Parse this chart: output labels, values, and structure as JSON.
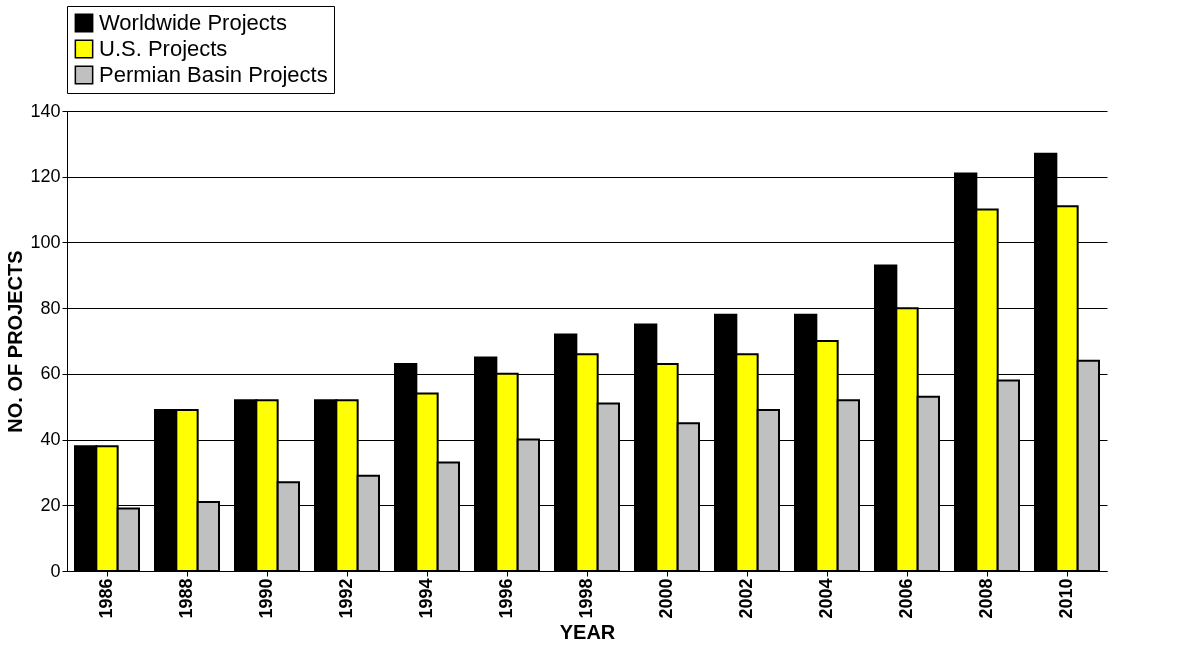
{
  "chart_data": {
    "type": "bar",
    "xlabel": "YEAR",
    "ylabel": "NO. OF PROJECTS",
    "categories": [
      "1986",
      "1988",
      "1990",
      "1992",
      "1994",
      "1996",
      "1998",
      "2000",
      "2002",
      "2004",
      "2006",
      "2008",
      "2010"
    ],
    "series": [
      {
        "name": "Worldwide Projects",
        "color": "#000000",
        "values": [
          38,
          49,
          52,
          52,
          63,
          65,
          72,
          75,
          78,
          78,
          93,
          121,
          127
        ]
      },
      {
        "name": "U.S. Projects",
        "color": "#ffff00",
        "values": [
          38,
          49,
          52,
          52,
          54,
          60,
          66,
          63,
          66,
          70,
          80,
          110,
          111
        ]
      },
      {
        "name": "Permian Basin Projects",
        "color": "#c0c0c0",
        "values": [
          19,
          21,
          27,
          29,
          33,
          40,
          51,
          45,
          49,
          52,
          53,
          58,
          64
        ]
      }
    ],
    "ylim": [
      0,
      140
    ],
    "yticks": [
      0,
      20,
      40,
      60,
      80,
      100,
      120,
      140
    ],
    "grid": "y",
    "legend": "top"
  }
}
